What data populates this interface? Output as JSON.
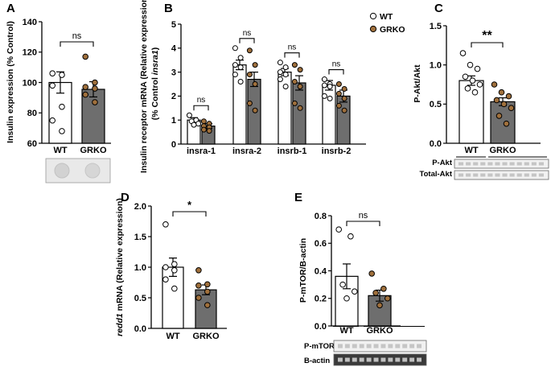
{
  "chart_data": [
    {
      "panel": "A",
      "type": "bar",
      "ylabel": "Insulin expression (% Control)",
      "ylim": [
        60,
        140
      ],
      "yticks": [
        60,
        80,
        100,
        120,
        140
      ],
      "categories": [
        "WT",
        "GRKO"
      ],
      "values": [
        100,
        95.5
      ],
      "sem": [
        7,
        5
      ],
      "points": [
        [
          106,
          105,
          98,
          84,
          75,
          68
        ],
        [
          117,
          100,
          97,
          96,
          92,
          87
        ]
      ],
      "significance": "ns",
      "bar_colors": [
        "#ffffff",
        "#6e6e6e"
      ],
      "point_colors": [
        "#ffffff",
        "#a0703c"
      ]
    },
    {
      "panel": "B",
      "type": "bar",
      "ylabel": "Insulin receptor mRNA (Relative expression) (% Control insra1)",
      "ylim": [
        0,
        5
      ],
      "yticks": [
        0,
        1,
        2,
        3,
        4,
        5
      ],
      "categories": [
        "insra-1",
        "insra-2",
        "insrb-1",
        "insrb-2"
      ],
      "series": [
        {
          "name": "WT",
          "values": [
            1.0,
            3.3,
            3.0,
            2.45
          ],
          "sem": [
            0.1,
            0.2,
            0.15,
            0.2
          ],
          "points": [
            [
              1.2,
              1.0,
              0.95,
              0.85,
              0.8
            ],
            [
              4.0,
              3.6,
              3.3,
              3.2,
              2.9,
              2.6
            ],
            [
              3.4,
              3.2,
              3.0,
              2.9,
              2.7,
              2.4
            ],
            [
              2.7,
              2.5,
              2.45,
              2.4,
              2.0,
              1.9
            ]
          ]
        },
        {
          "name": "GRKO",
          "values": [
            0.75,
            2.7,
            2.55,
            2.0
          ],
          "sem": [
            0.1,
            0.3,
            0.3,
            0.25
          ],
          "points": [
            [
              0.95,
              0.85,
              0.75,
              0.7,
              0.6,
              0.55
            ],
            [
              3.9,
              3.3,
              2.9,
              2.5,
              1.7,
              1.4
            ],
            [
              3.3,
              3.1,
              2.6,
              2.4,
              1.7,
              1.5
            ],
            [
              2.5,
              2.3,
              2.1,
              1.9,
              1.6,
              1.4
            ]
          ]
        }
      ],
      "significance": [
        "ns",
        "ns",
        "ns",
        "ns"
      ],
      "legend_placement": "top-right"
    },
    {
      "panel": "C",
      "type": "bar",
      "ylabel": "P-Akt/Akt",
      "ylim": [
        0,
        1.5
      ],
      "yticks": [
        0.0,
        0.5,
        1.0,
        1.5
      ],
      "categories": [
        "WT",
        "GRKO"
      ],
      "values": [
        0.8,
        0.53
      ],
      "sem": [
        0.06,
        0.05
      ],
      "points": [
        [
          1.15,
          1.0,
          0.95,
          0.85,
          0.8,
          0.75,
          0.7,
          0.65
        ],
        [
          0.75,
          0.65,
          0.6,
          0.55,
          0.5,
          0.45,
          0.35,
          0.25
        ]
      ],
      "significance": "**",
      "blots": [
        "P-Akt",
        "Total-Akt"
      ]
    },
    {
      "panel": "D",
      "type": "bar",
      "ylabel_italic": "redd1",
      "ylabel": "mRNA (Relative expression)",
      "ylim": [
        0,
        2.0
      ],
      "yticks": [
        0.0,
        0.5,
        1.0,
        1.5,
        2.0
      ],
      "categories": [
        "WT",
        "GRKO"
      ],
      "values": [
        1.0,
        0.63
      ],
      "sem": [
        0.15,
        0.08
      ],
      "points": [
        [
          1.7,
          1.05,
          1.0,
          0.95,
          0.8,
          0.65
        ],
        [
          0.95,
          0.72,
          0.7,
          0.6,
          0.5,
          0.38
        ]
      ],
      "significance": "*"
    },
    {
      "panel": "E",
      "type": "bar",
      "ylabel": "P-mTOR/B-actin",
      "ylim": [
        0,
        0.8
      ],
      "yticks": [
        0.0,
        0.2,
        0.4,
        0.6,
        0.8
      ],
      "categories": [
        "WT",
        "GRKO"
      ],
      "values": [
        0.36,
        0.22
      ],
      "sem": [
        0.09,
        0.04
      ],
      "points": [
        [
          0.7,
          0.65,
          0.3,
          0.25,
          0.2
        ],
        [
          0.38,
          0.27,
          0.24,
          0.2,
          0.15
        ]
      ],
      "significance": "ns",
      "blots": [
        "P-mTOR",
        "B-actin"
      ]
    }
  ]
}
